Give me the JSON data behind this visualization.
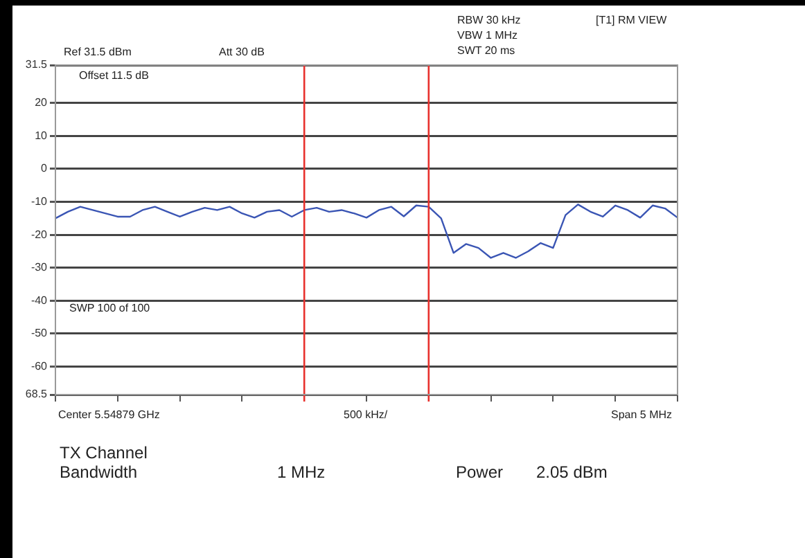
{
  "chart_data": {
    "type": "line",
    "categories": [
      null,
      null,
      null,
      null,
      null,
      null,
      null,
      null,
      null,
      null,
      null,
      null,
      null,
      null,
      null,
      null,
      null,
      null,
      null,
      null,
      null,
      null,
      null,
      null,
      null,
      null,
      null,
      null,
      null,
      null,
      null,
      null,
      null,
      null,
      null,
      null,
      null,
      null,
      null,
      null,
      null,
      null,
      null,
      null,
      null,
      null,
      null,
      null,
      null,
      null,
      null
    ],
    "series": [
      {
        "color": "#3a55b4",
        "values": [
          -15,
          -13,
          -11.5,
          -12.5,
          -13.5,
          -14.5,
          -14.5,
          -12.5,
          -11.5,
          -13,
          -14.5,
          -13,
          -11.8,
          -12.5,
          -11.5,
          -13.5,
          -14.8,
          -13,
          -12.5,
          -14.5,
          -12.5,
          -11.8,
          -13,
          -12.5,
          -13.5,
          -14.8,
          -12.5,
          -11.5,
          -14.4,
          -11.1,
          -11.5,
          -15,
          -25.5,
          -22.8,
          -24,
          -27,
          -25.5,
          -27,
          -25,
          -22.5,
          -24,
          -14,
          -10.8,
          -13,
          -14.5,
          -11.1,
          -12.5,
          -14.8,
          -11.1,
          -12,
          -14.8
        ]
      }
    ],
    "ylim": [
      -68.5,
      31.5
    ],
    "yticks": [
      31.5,
      20,
      10,
      0,
      -10,
      -20,
      -30,
      -40,
      -50,
      -60,
      {
        "value": -68.5,
        "label": "68.5"
      }
    ],
    "grid": "y",
    "legend": false,
    "marker": "none",
    "line_style": "solid",
    "annotations": [
      "Ref 31.5 dBm",
      "Att 30 dB",
      "RBW 30 kHz",
      "VBW 1 MHz",
      "SWT 20 ms",
      "[T1] RM VIEW",
      "Offset 11.5 dB",
      "SWP 100 of 100",
      "Center 5.54879 GHz",
      "500 kHz/",
      "Span 5 MHz",
      "TX Channel",
      "Bandwidth",
      "1 MHz",
      "Power",
      "2.05 dBm"
    ]
  }
}
